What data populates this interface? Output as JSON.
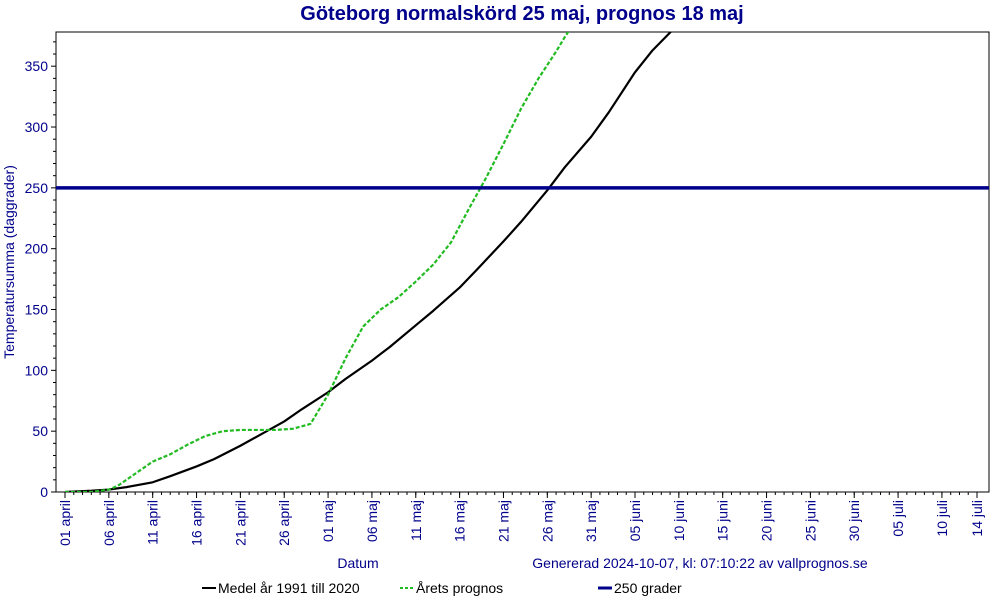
{
  "chart_data": {
    "type": "line",
    "title": "Göteborg normalskörd 25 maj, prognos 18 maj",
    "xlabel": "Datum",
    "ylabel": "Temperatursumma (daggrader)",
    "footer": "Genererad 2024-10-07, kl: 07:10:22 av vallprognos.se",
    "ylim": [
      0,
      380
    ],
    "yticks": [
      0,
      50,
      100,
      150,
      200,
      250,
      300,
      350
    ],
    "xlim": [
      "2024-04-01",
      "2024-07-14"
    ],
    "xticks": [
      "01 april",
      "06 april",
      "11 april",
      "16 april",
      "21 april",
      "26 april",
      "01 maj",
      "06 maj",
      "11 maj",
      "16 maj",
      "21 maj",
      "26 maj",
      "31 maj",
      "05 juni",
      "10 juni",
      "15 juni",
      "20 juni",
      "25 juni",
      "30 juni",
      "05 juli",
      "10 juli",
      "14 juli"
    ],
    "xtick_dates": [
      "2024-04-01",
      "2024-04-06",
      "2024-04-11",
      "2024-04-16",
      "2024-04-21",
      "2024-04-26",
      "2024-05-01",
      "2024-05-06",
      "2024-05-11",
      "2024-05-16",
      "2024-05-21",
      "2024-05-26",
      "2024-05-31",
      "2024-06-05",
      "2024-06-10",
      "2024-06-15",
      "2024-06-20",
      "2024-06-25",
      "2024-06-30",
      "2024-07-05",
      "2024-07-10",
      "2024-07-14"
    ],
    "grid": false,
    "legend_position": "bottom",
    "series": [
      {
        "name": "Medel år 1991 till 2020",
        "color": "#000000",
        "style": "solid",
        "x": [
          "2024-04-01",
          "2024-04-04",
          "2024-04-06",
          "2024-04-08",
          "2024-04-11",
          "2024-04-13",
          "2024-04-16",
          "2024-04-18",
          "2024-04-21",
          "2024-04-23",
          "2024-04-26",
          "2024-04-28",
          "2024-05-01",
          "2024-05-03",
          "2024-05-06",
          "2024-05-08",
          "2024-05-11",
          "2024-05-13",
          "2024-05-16",
          "2024-05-18",
          "2024-05-21",
          "2024-05-23",
          "2024-05-26",
          "2024-05-28",
          "2024-05-31",
          "2024-06-02",
          "2024-06-05",
          "2024-06-07",
          "2024-06-10",
          "2024-06-11"
        ],
        "y": [
          0,
          1,
          2,
          4,
          8,
          13,
          21,
          27,
          38,
          46,
          58,
          68,
          82,
          93,
          108,
          119,
          137,
          149,
          168,
          183,
          206,
          222,
          248,
          267,
          292,
          312,
          345,
          363,
          385,
          392
        ]
      },
      {
        "name": "Årets prognos",
        "color": "#22bb22",
        "style": "dashed",
        "x": [
          "2024-04-01",
          "2024-04-04",
          "2024-04-06",
          "2024-04-07",
          "2024-04-09",
          "2024-04-11",
          "2024-04-13",
          "2024-04-15",
          "2024-04-17",
          "2024-04-19",
          "2024-04-21",
          "2024-04-23",
          "2024-04-25",
          "2024-04-27",
          "2024-04-29",
          "2024-05-01",
          "2024-05-03",
          "2024-05-05",
          "2024-05-07",
          "2024-05-09",
          "2024-05-11",
          "2024-05-13",
          "2024-05-15",
          "2024-05-17",
          "2024-05-19",
          "2024-05-21",
          "2024-05-23",
          "2024-05-25",
          "2024-05-27",
          "2024-05-28",
          "2024-05-29"
        ],
        "y": [
          0,
          0,
          2,
          5,
          15,
          25,
          31,
          39,
          46,
          50,
          51,
          51,
          51,
          52,
          56,
          80,
          110,
          136,
          150,
          160,
          173,
          187,
          205,
          232,
          258,
          286,
          315,
          340,
          362,
          374,
          385
        ]
      },
      {
        "name": "250 grader",
        "color": "#00008b",
        "style": "solid",
        "x": [
          "2024-04-01",
          "2024-07-14"
        ],
        "y": [
          250,
          250
        ]
      }
    ]
  }
}
